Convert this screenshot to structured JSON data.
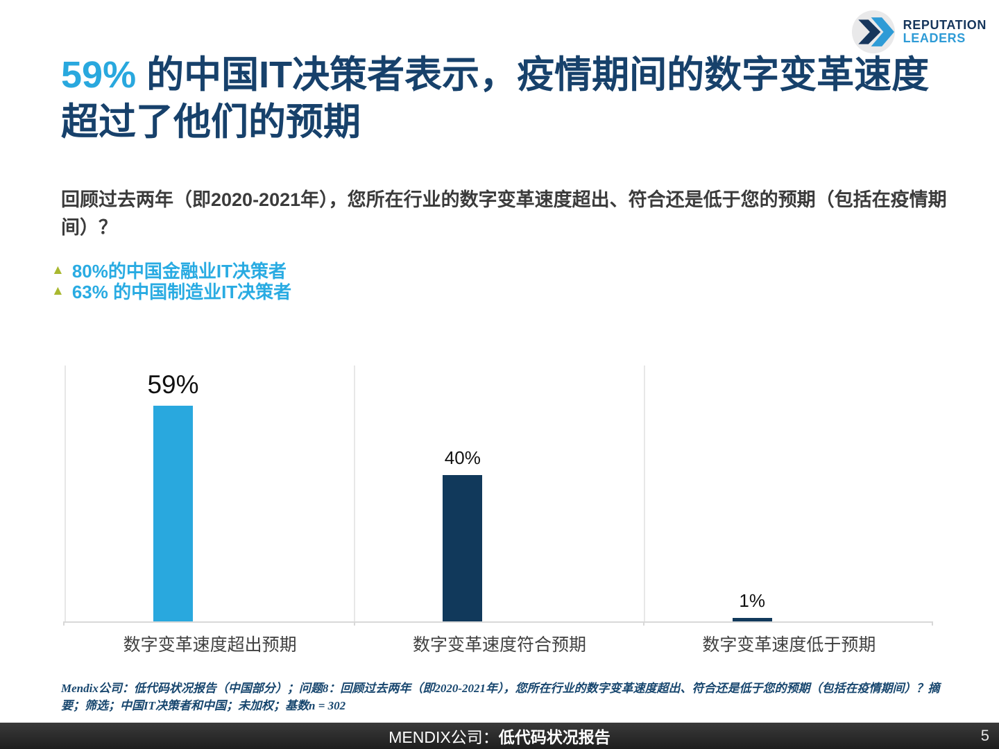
{
  "logo": {
    "line1": "REPUTATION",
    "line2": "LEADERS"
  },
  "title": {
    "highlight": "59%",
    "rest": " 的中国IT决策者表示，疫情期间的数字变革速度超过了他们的预期"
  },
  "question": "回顾过去两年（即2020-2021年），您所在行业的数字变革速度超出、符合还是低于您的预期（包括在疫情期间）？",
  "highlights": [
    {
      "icon": "▲",
      "text": "80%的中国金融业IT决策者"
    },
    {
      "icon": "▲",
      "text": "63% 的中国制造业IT决策者"
    }
  ],
  "chart_data": {
    "type": "bar",
    "title": "",
    "xlabel": "",
    "ylabel": "",
    "ylim": [
      0,
      70
    ],
    "legend": "none",
    "grid": "vertical category separators, light gray",
    "categories": [
      "数字变革速度超出预期",
      "数字变革速度符合预期",
      "数字变革速度低于预期"
    ],
    "values": [
      59,
      40,
      1
    ],
    "points": [
      {
        "category": "数字变革速度超出预期",
        "value": 59,
        "label": "59%",
        "color": "#29A8DE"
      },
      {
        "category": "数字变革速度符合预期",
        "value": 40,
        "label": "40%",
        "color": "#11395B"
      },
      {
        "category": "数字变革速度低于预期",
        "value": 1,
        "label": "1%",
        "color": "#11395B"
      }
    ]
  },
  "footnote": "Mendix公司：低代码状况报告（中国部分）；问题8：回顾过去两年（即2020-2021年），您所在行业的数字变革速度超出、符合还是低于您的预期（包括在疫情期间）？摘要；筛选；中国IT决策者和中国；未加权；基数n = 302",
  "footer": {
    "prefix": "MENDIX公司：",
    "title": "低代码状况报告",
    "page": "5"
  },
  "colors": {
    "accent_blue": "#29A8DE",
    "dark_navy": "#11395B",
    "title_navy": "#17416B",
    "bullet_olive": "#A9B82F",
    "footer_bg": "#2B2B2B"
  }
}
